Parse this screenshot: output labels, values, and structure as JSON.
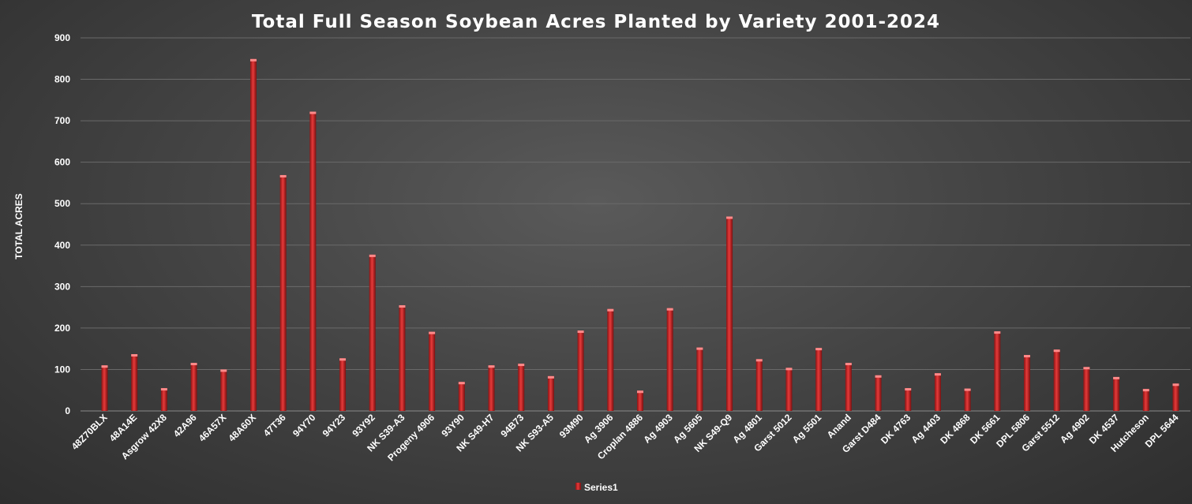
{
  "chart_data": {
    "type": "bar",
    "title": "Total Full Season Soybean Acres Planted by Variety 2001-2024",
    "ylabel": "TOTAL ACRES",
    "xlabel": "",
    "ylim": [
      0,
      900
    ],
    "yticks": [
      "0",
      "100",
      "200",
      "300",
      "400",
      "500",
      "600",
      "700",
      "800",
      "900"
    ],
    "grid": true,
    "legend_position": "bottom",
    "bar_color": "#d42b2b",
    "categories": [
      "48Z70BLX",
      "48A14E",
      "Asgrow 42X8",
      "42A96",
      "46A57X",
      "48A60X",
      "47T36",
      "94Y70",
      "94Y23",
      "93Y92",
      "NK S39-A3",
      "Progeny 4906",
      "93Y90",
      "NK S49-H7",
      "94B73",
      "NK S93-A5",
      "93M90",
      "Ag 3906",
      "Croplan 4886",
      "Ag 4903",
      "Ag 5605",
      "NK S49-Q9",
      "Ag 4801",
      "Garst 5012",
      "Ag 5501",
      "Anand",
      "Garst D484",
      "DK 4763",
      "Ag 4403",
      "DK 4868",
      "DK 5661",
      "DPL 5806",
      "Garst 5512",
      "Ag 4902",
      "DK 4537",
      "Hutcheson",
      "DPL 5644"
    ],
    "series": [
      {
        "name": "Series1",
        "values": [
          110,
          137,
          55,
          116,
          100,
          849,
          569,
          722,
          127,
          377,
          255,
          191,
          70,
          110,
          114,
          84,
          194,
          246,
          49,
          248,
          153,
          469,
          125,
          104,
          152,
          116,
          86,
          55,
          91,
          54,
          192,
          135,
          148,
          106,
          82,
          53,
          66
        ]
      }
    ]
  }
}
